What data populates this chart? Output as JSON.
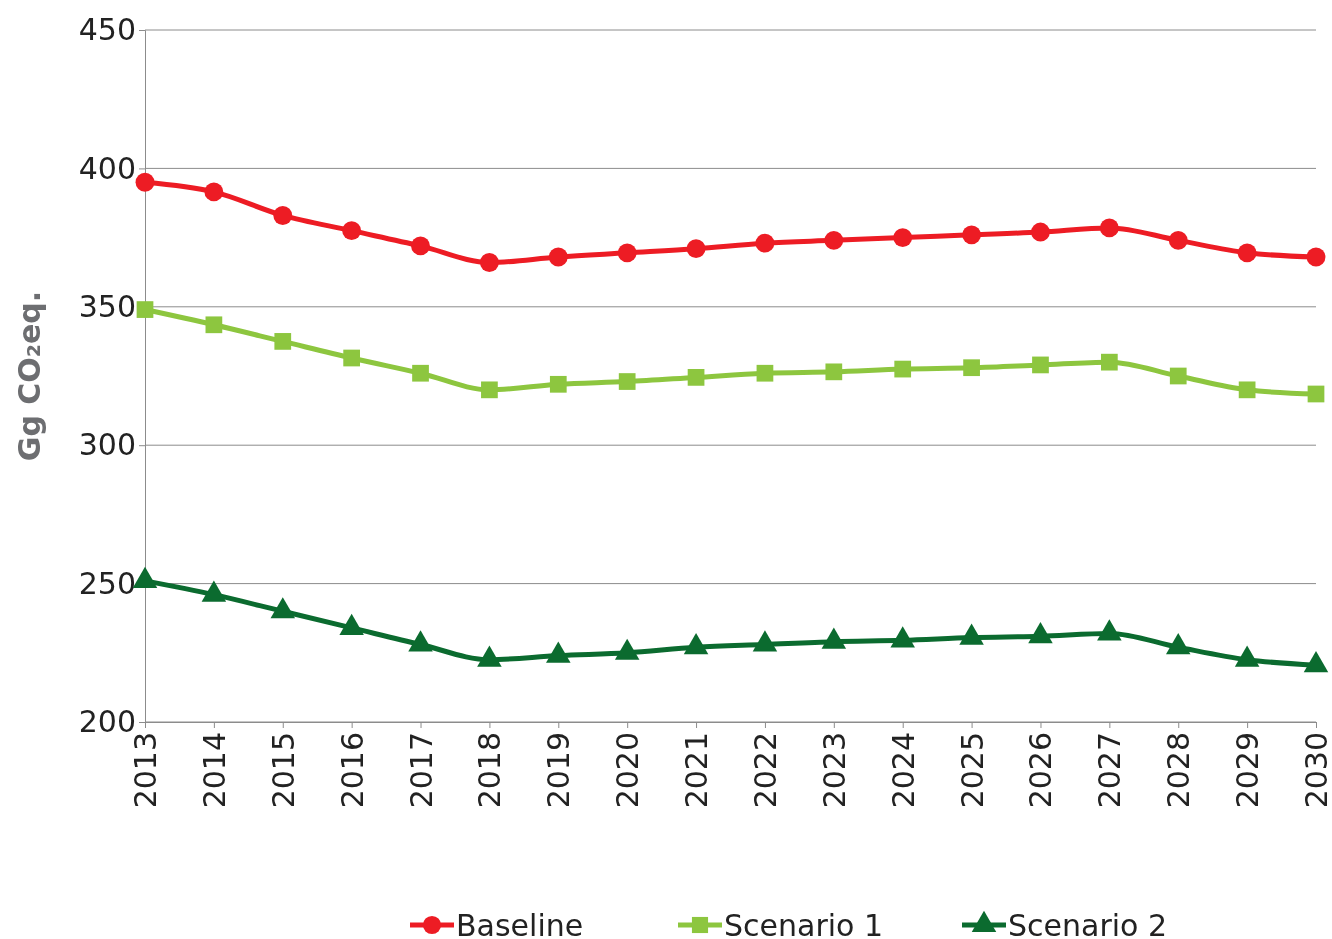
{
  "chart_data": {
    "type": "line",
    "ylabel": "Gg CO₂eq.",
    "categories": [
      "2013",
      "2014",
      "2015",
      "2016",
      "2017",
      "2018",
      "2019",
      "2020",
      "2021",
      "2022",
      "2023",
      "2024",
      "2025",
      "2026",
      "2027",
      "2028",
      "2029",
      "2030"
    ],
    "series": [
      {
        "name": "Baseline",
        "color": "#ed1c24",
        "marker": "circle",
        "values": [
          395,
          391.5,
          383,
          377.5,
          372,
          366,
          368,
          369.5,
          371,
          373,
          374,
          375,
          376,
          377,
          378.5,
          374,
          369.5,
          368
        ]
      },
      {
        "name": "Scenario 1",
        "color": "#8dc63f",
        "marker": "square",
        "values": [
          349,
          343.5,
          337.5,
          331.5,
          326,
          320,
          322,
          323,
          324.5,
          326,
          326.5,
          327.5,
          328,
          329,
          330,
          325,
          320,
          318.5
        ]
      },
      {
        "name": "Scenario 2",
        "color": "#0b6b2f",
        "marker": "triangle",
        "values": [
          251,
          246,
          240,
          234,
          228,
          222.5,
          224,
          225,
          227,
          228,
          229,
          229.5,
          230.5,
          231,
          232,
          227,
          222.5,
          220.5
        ]
      }
    ],
    "ylim": [
      200,
      450
    ],
    "yticks": [
      200,
      250,
      300,
      350,
      400,
      450
    ],
    "grid": "y",
    "legend": "bottom",
    "line_style": "solid"
  }
}
